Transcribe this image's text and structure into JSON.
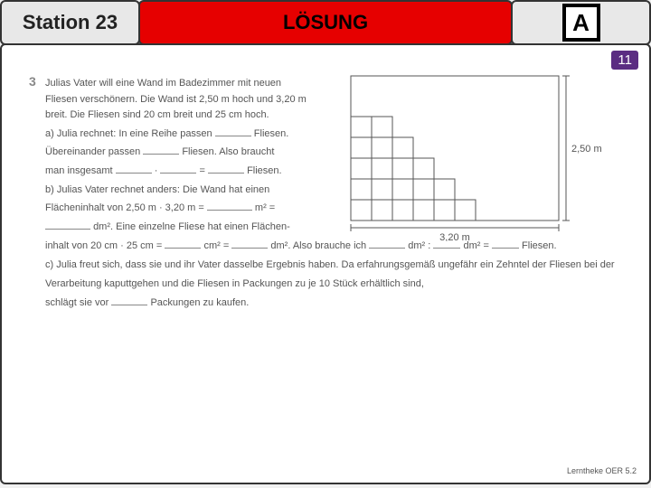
{
  "header": {
    "station": "Station 23",
    "title": "LÖSUNG",
    "letter": "A"
  },
  "badge": "11",
  "problem": {
    "number": "3",
    "intro": "Julias Vater will eine Wand im Badezimmer mit neuen Fliesen verschönern. Die Wand ist 2,50 m hoch und 3,20 m breit. Die Fliesen sind 20 cm breit und 25 cm hoch.",
    "a_line1_pre": "a) Julia rechnet: In eine Reihe passen",
    "a_line1_post": "Fliesen.",
    "a_line2_pre": "Übereinander passen",
    "a_line2_post": "Fliesen. Also braucht",
    "a_line3_pre": "man insgesamt",
    "a_line3_mid": "·",
    "a_line3_eq": "=",
    "a_line3_post": "Fliesen.",
    "b_line1": "b) Julias Vater rechnet anders: Die Wand hat einen",
    "b_line2_pre": "Flächeninhalt von 2,50 m · 3,20 m =",
    "b_line2_post": "m² =",
    "b_line3_pre": "",
    "b_line3_post": "dm². Eine einzelne Fliese hat einen Flächen-",
    "b_line4_pre": "inhalt von 20 cm · 25 cm =",
    "b_line4_cm2": "cm² =",
    "b_line4_dm2": "dm². Also brauche ich",
    "b_line4_div": "dm² :",
    "b_line4_eq": "dm² =",
    "b_line4_post": " Fliesen.",
    "c_text": "c) Julia freut sich, dass sie und ihr Vater dasselbe Ergebnis haben. Da erfahrungsgemäß ungefähr ein Zehntel der Fliesen bei der Verarbeitung kaputtgehen und die Fliesen in Packungen zu je 10 Stück erhältlich sind,",
    "c_line2_pre": "schlägt sie vor",
    "c_line2_post": "Packungen zu kaufen."
  },
  "diagram": {
    "width_label": "3,20 m",
    "height_label": "2,50 m",
    "outer_w": 230,
    "outer_h": 160,
    "tile": 23,
    "stroke": "#555",
    "stair_cols": [
      2,
      3,
      4,
      5,
      6
    ]
  },
  "footer": "Lerntheke OER 5.2"
}
